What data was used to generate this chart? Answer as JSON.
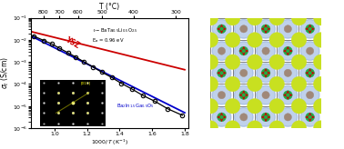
{
  "title_top": "T (°C)",
  "temp_axis_labels": [
    800,
    700,
    600,
    500,
    400,
    300
  ],
  "ylabel": "$\\sigma_t$ (S/cm)",
  "ylim_log": [
    -6,
    -1
  ],
  "ysz_label": "YSZ",
  "line2_label": "Ba$_2$In$_{1.5}$Ga$_{0.5}$O$_5$",
  "main_label": "BaTa$_{0.5}$Li$_{0.5}$O$_{2.5}$",
  "ea_label": "E$_a$ = 0.96 eV",
  "plot_bg": "#ffffff",
  "ysz_color": "#cc0000",
  "line2_color": "#0000cc",
  "main_color": "#000000",
  "main_data_1000T": [
    0.87,
    0.935,
    0.983,
    1.031,
    1.082,
    1.131,
    1.182,
    1.235,
    1.29,
    1.351,
    1.408,
    1.474,
    1.543,
    1.616,
    1.695,
    1.786
  ],
  "main_data_logsigma": [
    -1.82,
    -2.03,
    -2.18,
    -2.38,
    -2.58,
    -2.78,
    -3.0,
    -3.22,
    -3.46,
    -3.7,
    -3.96,
    -4.22,
    -4.52,
    -4.78,
    -5.12,
    -5.42
  ],
  "ysz_1000T": [
    0.855,
    1.8
  ],
  "ysz_logsigma": [
    -1.62,
    -3.35
  ],
  "line2_1000T": [
    0.855,
    1.8
  ],
  "line2_logsigma": [
    -1.82,
    -5.3
  ],
  "xlim": [
    0.855,
    1.82
  ],
  "xticks": [
    1.0,
    1.2,
    1.4,
    1.6,
    1.8
  ],
  "crystal_bg": "#b8cce8",
  "ba_color": "#c8e020",
  "ta_color": "#22aa44",
  "other_color": "#a08878",
  "isosurface_color": "#8cacdc",
  "arrow_color": "#cc0000",
  "grid_color": "#222222"
}
